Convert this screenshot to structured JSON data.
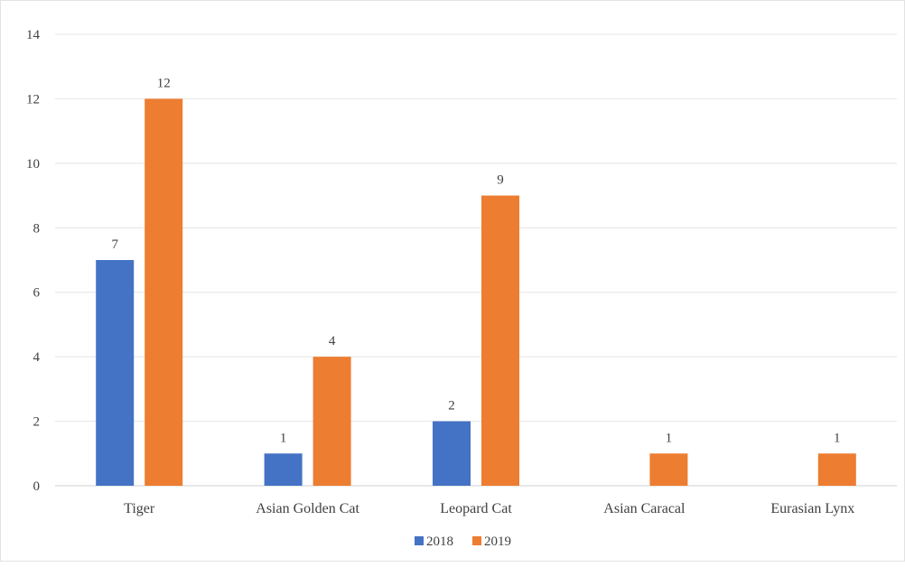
{
  "chart_data": {
    "type": "bar",
    "categories": [
      "Tiger",
      "Asian Golden Cat",
      "Leopard Cat",
      "Asian Caracal",
      "Eurasian Lynx"
    ],
    "series": [
      {
        "name": "2018",
        "values": [
          7,
          1,
          2,
          null,
          null
        ],
        "color": "#4472C4"
      },
      {
        "name": "2019",
        "values": [
          12,
          4,
          9,
          1,
          1
        ],
        "color": "#ED7D31"
      }
    ],
    "title": "",
    "xlabel": "",
    "ylabel": "",
    "ylim": [
      0,
      14
    ],
    "yticks": [
      0,
      2,
      4,
      6,
      8,
      10,
      12,
      14
    ],
    "grid": true,
    "legend_position": "bottom",
    "data_labels": true
  }
}
